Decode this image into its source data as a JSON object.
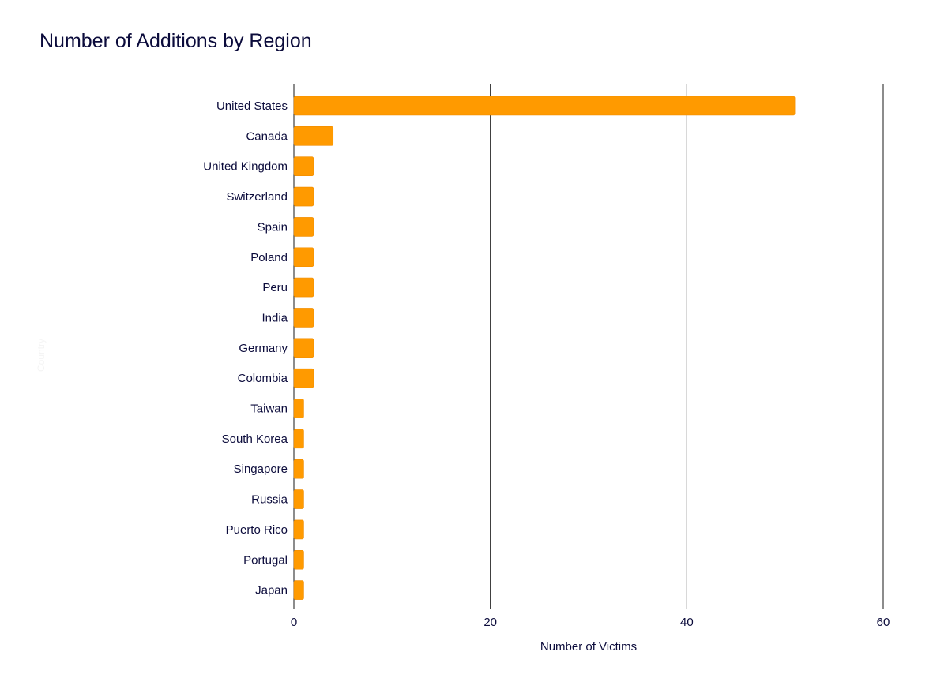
{
  "title": "Number of Additions by Region",
  "colors": {
    "bar": "#FF9A00",
    "bar_edge": "#F08C00",
    "grid": "#1a1a1a",
    "text": "#0b0b3b"
  },
  "chart_data": {
    "type": "bar",
    "orientation": "horizontal",
    "title": "Number of Additions by Region",
    "xlabel": "Number of Victims",
    "ylabel": "Country",
    "xlim": [
      0,
      60
    ],
    "x_ticks": [
      0,
      20,
      40,
      60
    ],
    "grid": true,
    "categories": [
      "United States",
      "Canada",
      "United Kingdom",
      "Switzerland",
      "Spain",
      "Poland",
      "Peru",
      "India",
      "Germany",
      "Colombia",
      "Taiwan",
      "South Korea",
      "Singapore",
      "Russia",
      "Puerto Rico",
      "Portugal",
      "Japan"
    ],
    "values": [
      51,
      4,
      2,
      2,
      2,
      2,
      2,
      2,
      2,
      2,
      1,
      1,
      1,
      1,
      1,
      1,
      1
    ]
  }
}
